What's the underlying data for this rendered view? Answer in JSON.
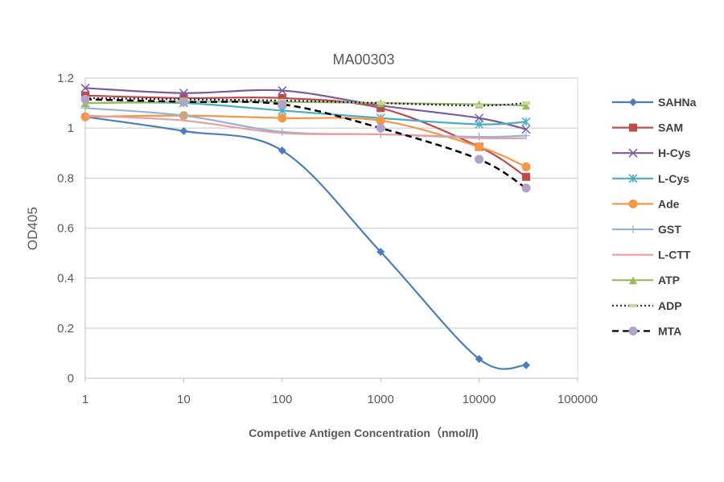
{
  "chart_data": {
    "type": "line",
    "title": "MA00303",
    "xlabel": "Competive Antigen Concentration（nmol/l)",
    "ylabel": "OD405",
    "xscale": "log",
    "xlim": [
      1,
      100000
    ],
    "ylim": [
      0,
      1.2
    ],
    "xticks": [
      "1",
      "10",
      "100",
      "1000",
      "10000",
      "100000"
    ],
    "yticks": [
      "0",
      "0.2",
      "0.4",
      "0.6",
      "0.8",
      "1",
      "1.2"
    ],
    "grid": "horizontal",
    "legend": "right",
    "x": [
      1,
      10,
      100,
      1000,
      10000,
      30000
    ],
    "series": [
      {
        "name": "SAHNa",
        "color": "#4a7ebb",
        "marker": "diamond",
        "dash": "solid",
        "values": [
          1.045,
          0.988,
          0.91,
          0.505,
          0.077,
          0.052
        ]
      },
      {
        "name": "SAM",
        "color": "#be4b48",
        "marker": "square",
        "dash": "solid",
        "values": [
          1.13,
          1.12,
          1.12,
          1.08,
          0.925,
          0.805
        ]
      },
      {
        "name": "H-Cys",
        "color": "#7e5a9f",
        "marker": "x",
        "dash": "solid",
        "values": [
          1.16,
          1.14,
          1.15,
          1.09,
          1.04,
          0.995
        ]
      },
      {
        "name": "L-Cys",
        "color": "#4bacc6",
        "marker": "star",
        "dash": "solid",
        "values": [
          1.1,
          1.1,
          1.07,
          1.04,
          1.015,
          1.025
        ]
      },
      {
        "name": "Ade",
        "color": "#f79646",
        "marker": "circle",
        "dash": "solid",
        "values": [
          1.045,
          1.05,
          1.04,
          1.03,
          0.925,
          0.845
        ]
      },
      {
        "name": "GST",
        "color": "#95b3d7",
        "marker": "plus",
        "dash": "solid",
        "values": [
          1.08,
          1.05,
          0.985,
          0.975,
          0.965,
          0.97
        ]
      },
      {
        "name": "L-CTT",
        "color": "#e6a0a0",
        "marker": "none",
        "dash": "solid",
        "values": [
          1.05,
          1.03,
          0.98,
          0.975,
          0.96,
          0.96
        ]
      },
      {
        "name": "ATP",
        "color": "#9bbb59",
        "marker": "triangle",
        "dash": "solid",
        "values": [
          1.1,
          1.105,
          1.105,
          1.1,
          1.095,
          1.09
        ]
      },
      {
        "name": "ADP",
        "color": "#1f1f5f",
        "marker": "bar",
        "markerColor": "#c3d69b",
        "dash": "dot",
        "values": [
          1.12,
          1.115,
          1.11,
          1.1,
          1.09,
          1.1
        ]
      },
      {
        "name": "MTA",
        "color": "#000000",
        "marker": "circle",
        "markerColor": "#b2a2c7",
        "dash": "dash",
        "values": [
          1.115,
          1.105,
          1.095,
          1.0,
          0.875,
          0.76
        ]
      }
    ]
  }
}
